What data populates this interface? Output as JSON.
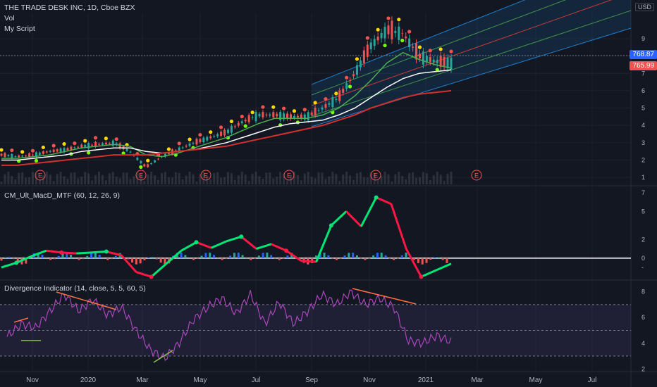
{
  "header": {
    "symbol_line": "THE TRADE DESK INC, 1D, Cboe BZX",
    "vol_label": "Vol",
    "script_label": "My Script",
    "currency": "USD"
  },
  "price_badges": {
    "last": "768.87",
    "prev": "765.99"
  },
  "macd_title": "CM_Ult_MacD_MTF (60, 12, 26, 9)",
  "div_title": "Divergence Indicator (14, close, 5, 5, 60, 5)",
  "earnings_marker": "E",
  "colors": {
    "bg": "#131722",
    "up": "#26a69a",
    "down": "#ef5350",
    "ma_white": "#ffffff",
    "ma_red": "#d32f2f",
    "ma_green": "#4caf50",
    "rsi": "#9c27b0",
    "channel": "#2196f3"
  },
  "chart_data": [
    {
      "type": "line",
      "panel": "price",
      "x_ticks": [
        "Nov",
        "2020",
        "Mar",
        "May",
        "Jul",
        "Sep",
        "Nov",
        "2021",
        "Mar",
        "May",
        "Jul"
      ],
      "y_ticks": [
        "1",
        "2",
        "3",
        "4",
        "5",
        "6",
        "7",
        "8",
        "9"
      ],
      "ylim": [
        0.6,
        10.5
      ],
      "series": [
        {
          "values": [
            2.3,
            2.2,
            2.3,
            2.5,
            2.6,
            2.8,
            2.9,
            3.0,
            2.5,
            1.6,
            2.2,
            2.6,
            3.0,
            3.3,
            3.6,
            4.2,
            4.6,
            4.6,
            4.5,
            4.5,
            5.0,
            5.6,
            7.0,
            8.6,
            9.5,
            9.3,
            8.0,
            7.7,
            7.6
          ]
        },
        {
          "values": [
            2.1,
            2.1,
            2.2,
            2.3,
            2.5,
            2.7,
            2.8,
            2.9,
            2.8,
            2.3,
            2.2,
            2.4,
            2.7,
            3.0,
            3.3,
            3.7,
            4.1,
            4.4,
            4.4,
            4.4,
            4.6,
            5.0,
            5.7,
            6.6,
            7.6,
            8.2,
            7.8,
            7.5,
            7.3
          ]
        },
        {
          "values": [
            2.0,
            2.0,
            2.1,
            2.2,
            2.3,
            2.5,
            2.6,
            2.7,
            2.7,
            2.5,
            2.4,
            2.5,
            2.6,
            2.8,
            3.0,
            3.3,
            3.6,
            3.9,
            4.1,
            4.2,
            4.3,
            4.6,
            5.0,
            5.6,
            6.2,
            6.7,
            7.0,
            7.1,
            7.2
          ]
        },
        {
          "values": [
            1.7,
            1.7,
            1.8,
            1.9,
            2.0,
            2.1,
            2.2,
            2.3,
            2.3,
            2.3,
            2.4,
            2.5,
            2.6,
            2.7,
            2.8,
            3.0,
            3.2,
            3.4,
            3.6,
            3.8,
            4.0,
            4.3,
            4.6,
            5.0,
            5.3,
            5.6,
            5.8,
            5.9,
            6.0
          ]
        }
      ]
    },
    {
      "type": "bar",
      "panel": "macd",
      "y_ticks": [
        "7",
        "5",
        "2",
        "0",
        "-"
      ],
      "ylim": [
        -2.2,
        7.6
      ],
      "values": [
        -1.0,
        -0.5,
        0.2,
        0.8,
        0.6,
        0.5,
        0.6,
        0.7,
        0.3,
        -1.5,
        -2.0,
        -0.6,
        0.8,
        1.7,
        1.1,
        1.8,
        2.3,
        1.0,
        1.5,
        0.8,
        -0.3,
        -0.4,
        3.5,
        5.0,
        3.4,
        6.5,
        5.8,
        1.0,
        -2.0,
        -1.3,
        -0.6
      ]
    },
    {
      "type": "line",
      "panel": "rsi",
      "y_ticks": [
        "8",
        "6",
        "4",
        "2"
      ],
      "ylim": [
        1.8,
        8.8
      ],
      "values": [
        4.5,
        5.5,
        5.2,
        6.5,
        7.8,
        6.5,
        7.4,
        6.2,
        6.8,
        5.0,
        3.5,
        2.8,
        4.0,
        5.8,
        6.8,
        7.5,
        6.3,
        7.8,
        5.5,
        7.2,
        5.5,
        6.5,
        7.8,
        7.0,
        8.0,
        7.0,
        7.5,
        6.8,
        4.2,
        4.0,
        4.6,
        4.1
      ]
    }
  ]
}
